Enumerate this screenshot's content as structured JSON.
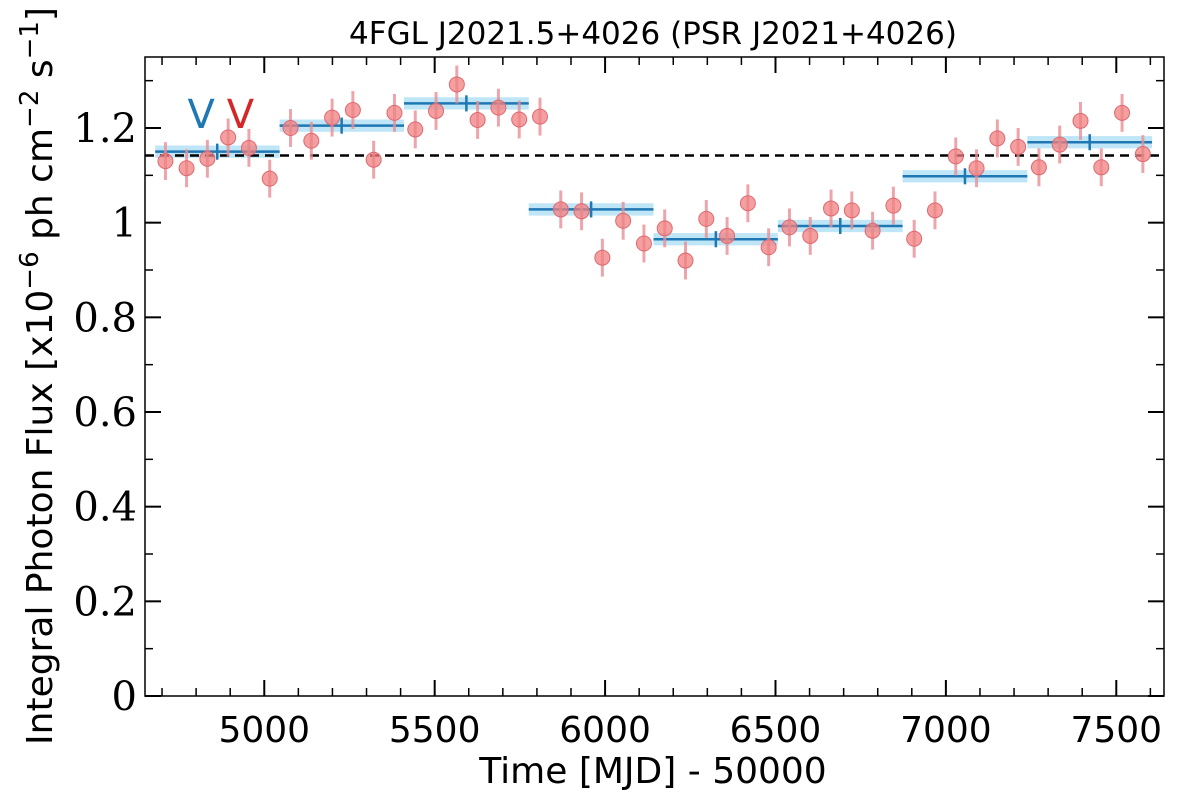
{
  "chart_data": {
    "type": "scatter",
    "title": "4FGL J2021.5+4026 (PSR J2021+4026)",
    "xlabel": "Time [MJD] - 50000",
    "ylabel": "Integral Photon Flux [x10",
    "ylabel_exp": "−6",
    "ylabel_mid": " ph cm",
    "ylabel_exp2": "−2",
    "ylabel_end": " s",
    "ylabel_exp3": "−1",
    "ylabel_close": "]",
    "xlim": [
      4650,
      7640
    ],
    "ylim": [
      0,
      1.35
    ],
    "x_ticks": [
      5000,
      5500,
      6000,
      6500,
      7000,
      7500
    ],
    "x_tick_labels": [
      "5000",
      "5500",
      "6000",
      "6500",
      "7000",
      "7500"
    ],
    "y_ticks": [
      0,
      0.2,
      0.4,
      0.6,
      0.8,
      1.0,
      1.2
    ],
    "y_tick_labels": [
      "0",
      "0.2",
      "0.4",
      "0.6",
      "0.8",
      "1",
      "1.2"
    ],
    "reference_line": {
      "y": 1.142,
      "style": "dashed",
      "color": "#000000"
    },
    "markers": [
      {
        "label": "V",
        "x": 4815,
        "color": "#1f77b4"
      },
      {
        "label": "V",
        "x": 4930,
        "color": "#d62728"
      }
    ],
    "colors": {
      "points": "#f08080",
      "point_error": "#e88f95",
      "bins": "#1f77b4",
      "bin_band": "#bfe6f7"
    },
    "series": [
      {
        "type": "points",
        "x": [
          4710,
          4772,
          4833,
          4894,
          4955,
          5016,
          5077,
          5138,
          5199,
          5260,
          5321,
          5382,
          5443,
          5504,
          5565,
          5626,
          5687,
          5748,
          5809,
          5870,
          5931,
          5992,
          6053,
          6114,
          6175,
          6236,
          6297,
          6358,
          6419,
          6480,
          6541,
          6602,
          6663,
          6724,
          6785,
          6846,
          6907,
          6968,
          7029,
          7090,
          7151,
          7212,
          7273,
          7334,
          7395,
          7456,
          7517,
          7578
        ],
        "y": [
          1.13,
          1.115,
          1.135,
          1.18,
          1.158,
          1.093,
          1.2,
          1.173,
          1.222,
          1.238,
          1.133,
          1.232,
          1.197,
          1.236,
          1.292,
          1.217,
          1.243,
          1.218,
          1.224,
          1.028,
          1.024,
          0.926,
          1.004,
          0.956,
          0.988,
          0.92,
          1.008,
          0.972,
          1.041,
          0.948,
          0.99,
          0.972,
          1.03,
          1.026,
          0.983,
          1.036,
          0.966,
          1.026,
          1.14,
          1.115,
          1.178,
          1.16,
          1.117,
          1.165,
          1.215,
          1.117,
          1.232,
          1.145
        ],
        "yerr": [
          0.04,
          0.04,
          0.04,
          0.04,
          0.04,
          0.04,
          0.04,
          0.04,
          0.04,
          0.04,
          0.04,
          0.04,
          0.04,
          0.04,
          0.04,
          0.04,
          0.04,
          0.04,
          0.04,
          0.04,
          0.04,
          0.04,
          0.04,
          0.04,
          0.04,
          0.04,
          0.04,
          0.04,
          0.04,
          0.04,
          0.04,
          0.04,
          0.04,
          0.04,
          0.04,
          0.04,
          0.04,
          0.04,
          0.04,
          0.04,
          0.04,
          0.04,
          0.04,
          0.04,
          0.04,
          0.04,
          0.04,
          0.04
        ]
      },
      {
        "type": "bins",
        "x_start": [
          4680,
          5045,
          5410,
          5776,
          6142,
          6507,
          6873,
          7239
        ],
        "x_end": [
          5045,
          5410,
          5776,
          6142,
          6507,
          6873,
          7239,
          7605
        ],
        "x_mid": [
          4862,
          5227,
          5593,
          5959,
          6325,
          6690,
          7056,
          7422
        ],
        "y": [
          1.15,
          1.205,
          1.252,
          1.028,
          0.965,
          0.993,
          1.098,
          1.17
        ],
        "band_half_height": 0.013
      }
    ]
  }
}
